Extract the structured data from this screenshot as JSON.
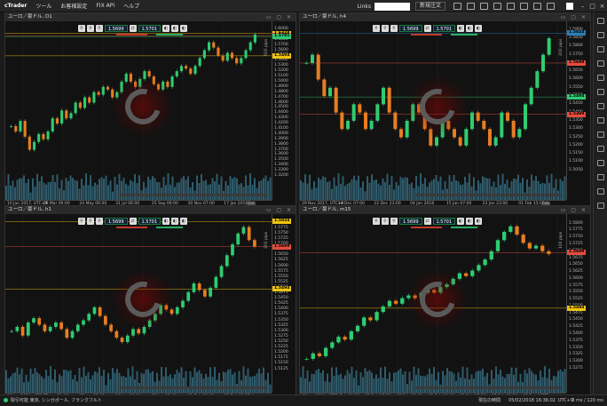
{
  "app": {
    "brand": "cTrader",
    "menu": [
      "ツール",
      "お客様設定",
      "FIX API",
      "ヘルプ"
    ],
    "links_label": "Links",
    "new_order": "新規注文"
  },
  "quotes": {
    "sell": "1.5699",
    "buy": "1.5701"
  },
  "colors": {
    "bull": "#2ecc71",
    "bear": "#e67e22",
    "volume": "#2f5b6b",
    "accent_yellow": "#f1c40f",
    "accent_red": "#e74c3c",
    "accent_green": "#2ecc71"
  },
  "charts": [
    {
      "id": "d1",
      "title": "ユーロ／豪ドル, D1",
      "tf_label": "500 pips",
      "scale": [
        "1.6000",
        "1.5900",
        "1.5800",
        "1.5700",
        "1.5600",
        "1.5500",
        "1.5400",
        "1.5300",
        "1.5200",
        "1.5100",
        "1.5000",
        "1.4900",
        "1.4800",
        "1.4700",
        "1.4600",
        "1.4500",
        "1.4400",
        "1.4300",
        "1.4200",
        "1.4100",
        "1.4000",
        "1.3900",
        "1.3800",
        "1.3700",
        "1.3600",
        "1.3500",
        "1.3400",
        "1.3300",
        "1.3200"
      ],
      "scale_min": 1.315,
      "scale_max": 1.605,
      "price_tags": [
        {
          "label": "1.6374",
          "value": 1.592,
          "color": "#f1c40f"
        },
        {
          "label": "1.5699",
          "value": 1.588,
          "color": "#e74c3c"
        },
        {
          "label": "1.5701",
          "value": 1.586,
          "color": "#2ecc71"
        },
        {
          "label": "1.5494",
          "value": 1.5494,
          "color": "#f1c40f"
        }
      ],
      "xticks": [
        "10 Jan 2017, UTC+9",
        "29 Mar 06:00",
        "24 May 06:00",
        "31 Jul 06:00",
        "25 Sep 06:00",
        "20 Nov 07:00",
        "17 Jan 2018"
      ],
      "xlabel_badge": "Oct",
      "series": [
        1.415,
        1.405,
        1.425,
        1.395,
        1.37,
        1.385,
        1.4,
        1.39,
        1.405,
        1.43,
        1.42,
        1.445,
        1.43,
        1.44,
        1.46,
        1.45,
        1.47,
        1.46,
        1.48,
        1.475,
        1.49,
        1.485,
        1.47,
        1.48,
        1.5,
        1.515,
        1.5,
        1.49,
        1.505,
        1.52,
        1.51,
        1.495,
        1.485,
        1.5,
        1.49,
        1.51,
        1.52,
        1.53,
        1.525,
        1.515,
        1.53,
        1.545,
        1.56,
        1.575,
        1.565,
        1.55,
        1.54,
        1.555,
        1.545,
        1.535,
        1.545,
        1.56,
        1.575,
        1.59
      ]
    },
    {
      "id": "h4",
      "title": "ユーロ／豪ドル, h4",
      "tf_label": "200 pips",
      "scale": [
        "1.5900",
        "1.5850",
        "1.5800",
        "1.5750",
        "1.5700",
        "1.5650",
        "1.5600",
        "1.5550",
        "1.5500",
        "1.5450",
        "1.5400",
        "1.5350",
        "1.5300",
        "1.5250",
        "1.5200",
        "1.5150",
        "1.5100",
        "1.5050"
      ],
      "scale_min": 1.5,
      "scale_max": 1.592,
      "price_tags": [
        {
          "label": "1.5824",
          "value": 1.588,
          "color": "#2980b9"
        },
        {
          "label": "1.5699",
          "value": 1.57,
          "color": "#e74c3c"
        },
        {
          "label": "1.5494",
          "value": 1.5494,
          "color": "#2ecc71"
        },
        {
          "label": "1.5389",
          "value": 1.5389,
          "color": "#e74c3c"
        }
      ],
      "xticks": [
        "29 Nov 2017, UTC+9",
        "14 Dec 07:00",
        "22 Dec 23:00",
        "04 Jan 2018",
        "15 Jan 07:00",
        "23 Jan 23:00",
        "01 Feb 15:00"
      ],
      "xlabel_badge": "Feb",
      "series": [
        1.57,
        1.575,
        1.56,
        1.55,
        1.555,
        1.54,
        1.53,
        1.535,
        1.545,
        1.54,
        1.53,
        1.535,
        1.545,
        1.555,
        1.54,
        1.53,
        1.525,
        1.535,
        1.545,
        1.54,
        1.53,
        1.52,
        1.525,
        1.535,
        1.53,
        1.525,
        1.52,
        1.53,
        1.54,
        1.535,
        1.53,
        1.52,
        1.525,
        1.54,
        1.535,
        1.525,
        1.53,
        1.545,
        1.555,
        1.565,
        1.575,
        1.585
      ]
    },
    {
      "id": "h1",
      "title": "ユーロ／豪ドル, h1",
      "tf_label": "200 pips",
      "scale": [
        "1.5800",
        "1.5775",
        "1.5750",
        "1.5725",
        "1.5700",
        "1.5675",
        "1.5650",
        "1.5625",
        "1.5600",
        "1.5575",
        "1.5550",
        "1.5525",
        "1.5500",
        "1.5475",
        "1.5450",
        "1.5425",
        "1.5400",
        "1.5375",
        "1.5350",
        "1.5325",
        "1.5300",
        "1.5275",
        "1.5250",
        "1.5225",
        "1.5200",
        "1.5175",
        "1.5150",
        "1.5125"
      ],
      "scale_min": 1.5115,
      "scale_max": 1.5815,
      "price_tags": [
        {
          "label": "1.5824",
          "value": 1.5805,
          "color": "#f1c40f"
        },
        {
          "label": "1.5699",
          "value": 1.569,
          "color": "#e74c3c"
        },
        {
          "label": "1.5494",
          "value": 1.5494,
          "color": "#f1c40f"
        }
      ],
      "xticks": [
        "19 Jan 2018, UTC+9",
        "23 Jan 11:00",
        "25 Jan 03:00",
        "26 Jan 19:00",
        "30 Jan 11:00",
        "01 Feb 03:00",
        "02 Feb 19:00"
      ],
      "xlabel_badge": "Feb",
      "series": [
        1.53,
        1.532,
        1.528,
        1.534,
        1.536,
        1.533,
        1.53,
        1.532,
        1.534,
        1.531,
        1.527,
        1.53,
        1.533,
        1.535,
        1.538,
        1.541,
        1.537,
        1.533,
        1.53,
        1.527,
        1.525,
        1.528,
        1.531,
        1.529,
        1.532,
        1.535,
        1.538,
        1.542,
        1.54,
        1.538,
        1.541,
        1.544,
        1.548,
        1.552,
        1.549,
        1.546,
        1.55,
        1.555,
        1.56,
        1.565,
        1.57,
        1.575,
        1.578,
        1.572,
        1.569
      ]
    },
    {
      "id": "m15",
      "title": "ユーロ／豪ドル, m15",
      "tf_label": "100 pips",
      "scale": [
        "1.5800",
        "1.5775",
        "1.5750",
        "1.5725",
        "1.5700",
        "1.5675",
        "1.5650",
        "1.5625",
        "1.5600",
        "1.5575",
        "1.5550",
        "1.5525",
        "1.5500",
        "1.5475",
        "1.5450",
        "1.5425",
        "1.5400",
        "1.5375",
        "1.5350",
        "1.5325",
        "1.5300",
        "1.5275"
      ],
      "scale_min": 1.5265,
      "scale_max": 1.5815,
      "price_tags": [
        {
          "label": "1.5699",
          "value": 1.5695,
          "color": "#e74c3c"
        },
        {
          "label": "1.5494",
          "value": 1.5494,
          "color": "#f1c40f"
        }
      ],
      "xticks": [
        "31 Jan 2018, UTC+9",
        "01 Feb 09:30",
        "01 Feb 17:30",
        "02 Feb 01:30",
        "02 Feb 09:30",
        "02 Feb 17:30",
        "05 Feb 05:30",
        "05 Feb 15:30"
      ],
      "xlabel_badge": "05",
      "series": [
        1.531,
        1.533,
        1.532,
        1.535,
        1.537,
        1.539,
        1.538,
        1.541,
        1.543,
        1.546,
        1.545,
        1.548,
        1.55,
        1.552,
        1.551,
        1.553,
        1.554,
        1.553,
        1.555,
        1.556,
        1.555,
        1.557,
        1.558,
        1.56,
        1.562,
        1.561,
        1.563,
        1.565,
        1.567,
        1.57,
        1.574,
        1.577,
        1.579,
        1.576,
        1.573,
        1.571,
        1.572,
        1.57,
        1.569
      ]
    }
  ],
  "status": {
    "left": "取引可能 東京, シンガポール, フランクフルト",
    "server_label": "現在の時間",
    "time": "05/02/2018 16:36:02",
    "tz": "UTC+9",
    "latency": "3 ms / 120 ms"
  }
}
